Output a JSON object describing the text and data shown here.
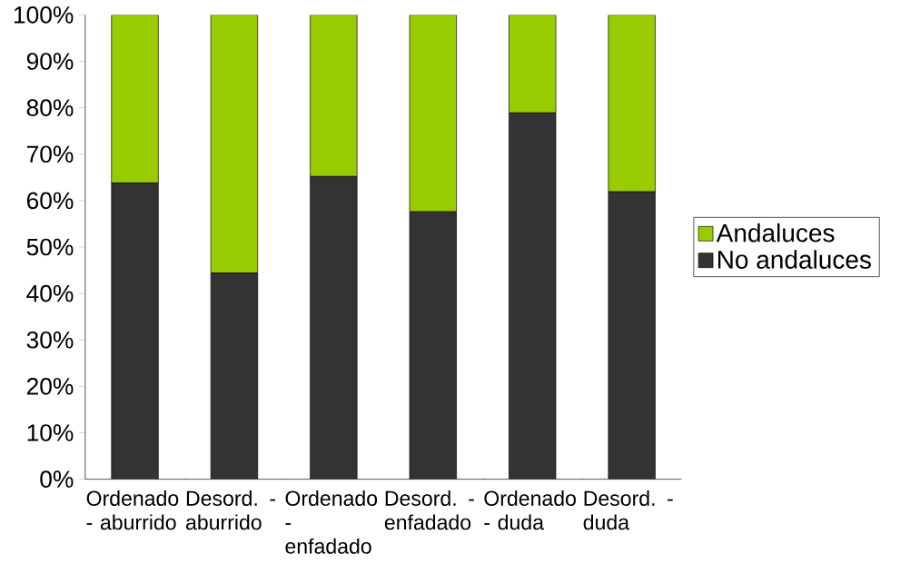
{
  "chart_data": {
    "type": "bar",
    "stacked": true,
    "categories": [
      "Ordenado - aburrido",
      "Desord. - aburrido",
      "Ordenado - enfadado",
      "Desord. - enfadado",
      "Ordenado - duda",
      "Desord. - duda"
    ],
    "series": [
      {
        "name": "No andaluces",
        "color": "#333333",
        "values": [
          63.8,
          44.4,
          65.2,
          57.6,
          78.9,
          61.9
        ]
      },
      {
        "name": "Andaluces",
        "color": "#99cc00",
        "values": [
          36.2,
          55.6,
          34.8,
          42.4,
          21.1,
          38.1
        ]
      }
    ],
    "ylim": [
      0,
      100
    ],
    "yticks": [
      {
        "value": 0,
        "label": "0%"
      },
      {
        "value": 10,
        "label": "10%"
      },
      {
        "value": 20,
        "label": "20%"
      },
      {
        "value": 30,
        "label": "30%"
      },
      {
        "value": 40,
        "label": "40%"
      },
      {
        "value": 50,
        "label": "50%"
      },
      {
        "value": 60,
        "label": "60%"
      },
      {
        "value": 70,
        "label": "70%"
      },
      {
        "value": 80,
        "label": "80%"
      },
      {
        "value": 90,
        "label": "90%"
      },
      {
        "value": 100,
        "label": "100%"
      }
    ],
    "legend": "right"
  }
}
